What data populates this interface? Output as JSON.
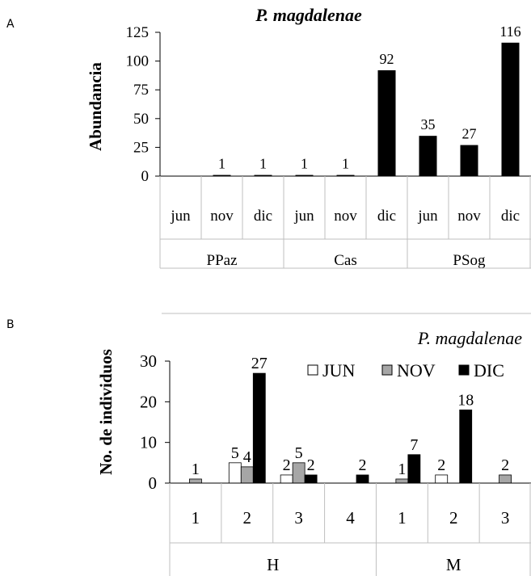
{
  "chart_data": [
    {
      "type": "bar",
      "panel_label": "A",
      "title": "P. magdalenae",
      "ylabel": "Abundancia",
      "xlabel": "",
      "ylim": [
        0,
        125
      ],
      "yticks": [
        0,
        25,
        50,
        75,
        100,
        125
      ],
      "grid": false,
      "groups": [
        {
          "label": "PPaz",
          "categories": [
            "jun",
            "nov",
            "dic"
          ],
          "values": [
            0,
            1,
            1
          ],
          "labels": [
            "",
            "1",
            "1"
          ]
        },
        {
          "label": "Cas",
          "categories": [
            "jun",
            "nov",
            "dic"
          ],
          "values": [
            1,
            1,
            92
          ],
          "labels": [
            "1",
            "1",
            "92"
          ]
        },
        {
          "label": "PSog",
          "categories": [
            "jun",
            "nov",
            "dic"
          ],
          "values": [
            35,
            27,
            116
          ],
          "labels": [
            "35",
            "27",
            "116"
          ]
        }
      ],
      "bar_color": "#000000"
    },
    {
      "type": "bar",
      "panel_label": "B",
      "title": "P. magdalenae",
      "ylabel": "No. de individuos",
      "xlabel": "",
      "ylim": [
        0,
        30
      ],
      "yticks": [
        0,
        10,
        20,
        30
      ],
      "grid": false,
      "legend_position": "top-right",
      "series": [
        {
          "name": "JUN",
          "color": "#ffffff"
        },
        {
          "name": "NOV",
          "color": "#a6a6a6"
        },
        {
          "name": "DIC",
          "color": "#000000"
        }
      ],
      "groups": [
        {
          "label": "H",
          "subgroups": [
            {
              "label": "1",
              "values": [
                0,
                1,
                0
              ],
              "labels": [
                "",
                "1",
                ""
              ]
            },
            {
              "label": "2",
              "values": [
                5,
                4,
                27
              ],
              "labels": [
                "5",
                "4",
                "27"
              ]
            },
            {
              "label": "3",
              "values": [
                2,
                5,
                2
              ],
              "labels": [
                "2",
                "5",
                "2"
              ]
            },
            {
              "label": "4",
              "values": [
                0,
                0,
                2
              ],
              "labels": [
                "",
                "",
                "2"
              ]
            }
          ]
        },
        {
          "label": "M",
          "subgroups": [
            {
              "label": "1",
              "values": [
                0,
                1,
                7
              ],
              "labels": [
                "",
                "1",
                "7"
              ]
            },
            {
              "label": "2",
              "values": [
                2,
                0,
                18
              ],
              "labels": [
                "2",
                "",
                "18"
              ]
            },
            {
              "label": "3",
              "values": [
                0,
                2,
                0
              ],
              "labels": [
                "",
                "2",
                ""
              ]
            }
          ]
        }
      ]
    }
  ]
}
